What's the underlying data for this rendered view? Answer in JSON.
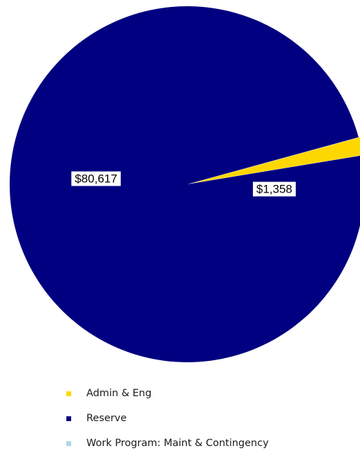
{
  "chart_data": {
    "type": "pie",
    "title": "",
    "slices": [
      {
        "label": "Admin & Eng",
        "value": 1358,
        "value_label": "$1,358",
        "color": "#FFD700"
      },
      {
        "label": "Reserve",
        "value": 80617,
        "value_label": "$80,617",
        "color": "#000080"
      },
      {
        "label": "Work Program: Maint & Contingency",
        "value": 0,
        "value_label": "",
        "color": "#ADD8E6"
      }
    ],
    "legend_position": "bottom"
  }
}
